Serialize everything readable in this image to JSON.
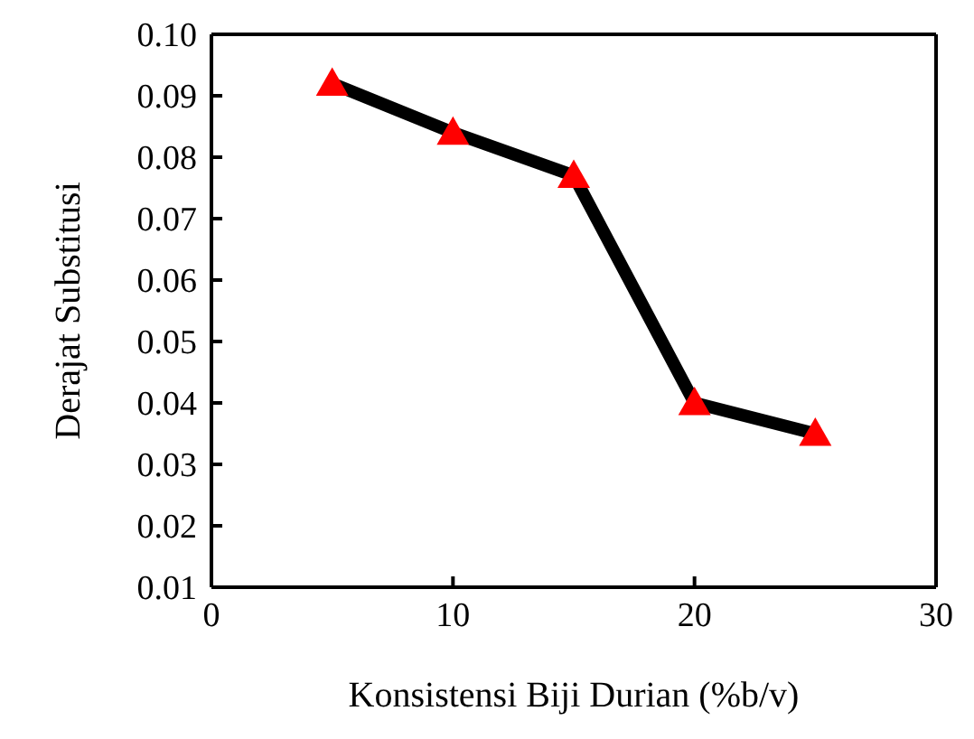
{
  "chart_data": {
    "type": "line",
    "xlabel": "Konsistensi Biji Durian (%b/v)",
    "ylabel": "Derajat Substitusi",
    "x": [
      5,
      10,
      15,
      20,
      25
    ],
    "series": [
      {
        "color": "#000000",
        "colors": [
          "#ff0000",
          "#ff0000",
          "#ff0000",
          "#ff0000",
          "#ff0000"
        ],
        "values": [
          0.092,
          0.084,
          0.077,
          0.04,
          0.035
        ]
      }
    ],
    "marker": "triangle",
    "line_style": "solid",
    "grid": false,
    "legend": false,
    "xlim": [
      0,
      30
    ],
    "xticks": [
      0,
      10,
      20,
      30
    ],
    "ylim": [
      0.01,
      0.1
    ],
    "yticks": [
      {
        "value": 0.01,
        "label": "0.01"
      },
      {
        "value": 0.02,
        "label": "0.02"
      },
      {
        "value": 0.03,
        "label": "0.03"
      },
      {
        "value": 0.04,
        "label": "0.04"
      },
      {
        "value": 0.05,
        "label": "0.05"
      },
      {
        "value": 0.06,
        "label": "0.06"
      },
      {
        "value": 0.07,
        "label": "0.07"
      },
      {
        "value": 0.08,
        "label": "0.08"
      },
      {
        "value": 0.09,
        "label": "0.09"
      },
      {
        "value": 0.1,
        "label": "0.10"
      }
    ]
  }
}
